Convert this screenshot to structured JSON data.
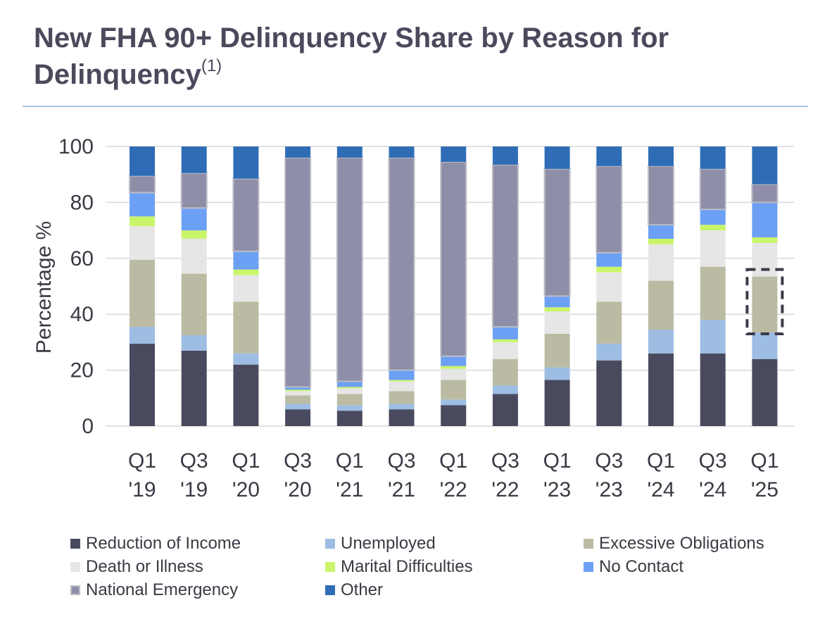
{
  "title": {
    "main": "New FHA 90+ Delinquency Share by Reason for Delinquency",
    "footnote": "(1)"
  },
  "colors": {
    "title": "#4a4a5c",
    "rule": "#a8c4e0",
    "grid": "#d9d9d9",
    "highlight_border": "#3b3b4a"
  },
  "legend": {
    "items": [
      "Reduction of Income",
      "Unemployed",
      "Excessive Obligations",
      "Death or Illness",
      "Marital Difficulties",
      "No Contact",
      "National Emergency",
      "Other"
    ]
  },
  "chart_data": {
    "type": "bar",
    "stacked": true,
    "title": "New FHA 90+ Delinquency Share by Reason for Delinquency",
    "xlabel": "",
    "ylabel": "Percentage %",
    "ylim": [
      0,
      100
    ],
    "yticks": [
      0,
      20,
      40,
      60,
      80,
      100
    ],
    "grid": true,
    "legend_position": "bottom",
    "categories": [
      "Q1 '19",
      "Q3 '19",
      "Q1 '20",
      "Q3 '20",
      "Q1 '21",
      "Q3 '21",
      "Q1 '22",
      "Q3 '22",
      "Q1 '23",
      "Q3 '23",
      "Q1 '24",
      "Q3 '24",
      "Q1 '25"
    ],
    "category_lines": [
      [
        "Q1",
        "'19"
      ],
      [
        "Q3",
        "'19"
      ],
      [
        "Q1",
        "'20"
      ],
      [
        "Q3",
        "'20"
      ],
      [
        "Q1",
        "'21"
      ],
      [
        "Q3",
        "'21"
      ],
      [
        "Q1",
        "'22"
      ],
      [
        "Q3",
        "'22"
      ],
      [
        "Q1",
        "'23"
      ],
      [
        "Q3",
        "'23"
      ],
      [
        "Q1",
        "'24"
      ],
      [
        "Q3",
        "'24"
      ],
      [
        "Q1",
        "'25"
      ]
    ],
    "series": [
      {
        "name": "Reduction of Income",
        "color": "#4a4a5f",
        "values": [
          29.5,
          27,
          22,
          6,
          5.5,
          6,
          7.5,
          11.5,
          16.5,
          23.5,
          26,
          26,
          24
        ]
      },
      {
        "name": "Unemployed",
        "color": "#9dbde3",
        "values": [
          6,
          5.5,
          4,
          2,
          2,
          2,
          2,
          3,
          4.5,
          6,
          8.5,
          12,
          9.5
        ]
      },
      {
        "name": "Excessive Obligations",
        "color": "#bbbba3",
        "values": [
          24,
          22,
          18.5,
          3,
          4,
          4.5,
          7,
          9.5,
          12,
          15,
          17.5,
          19,
          20
        ]
      },
      {
        "name": "Death or Illness",
        "color": "#e6e6e6",
        "values": [
          12,
          12.5,
          9.5,
          1.5,
          2,
          3.5,
          4,
          6,
          8,
          10.5,
          13,
          13,
          12
        ]
      },
      {
        "name": "Marital Difficulties",
        "color": "#caf56b",
        "values": [
          3.5,
          3,
          2,
          0.5,
          0.5,
          0.5,
          1,
          1,
          1.5,
          2,
          2,
          2,
          2
        ]
      },
      {
        "name": "No Contact",
        "color": "#6ca0f5",
        "values": [
          8.5,
          8,
          6.5,
          1,
          2,
          3.5,
          3.5,
          4.5,
          4,
          5,
          5,
          5.5,
          12.5
        ]
      },
      {
        "name": "National Emergency",
        "color": "#8f8ea8",
        "values": [
          6,
          12.5,
          26,
          82,
          80,
          76,
          69.5,
          58,
          45.5,
          31,
          21,
          14.5,
          6.5
        ]
      },
      {
        "name": "Other",
        "color": "#2e6db6",
        "values": [
          10.5,
          9.5,
          11.5,
          4,
          4,
          4,
          5.5,
          6.5,
          8,
          7,
          7,
          8,
          13.5
        ]
      }
    ],
    "annotations": [
      {
        "type": "dashed-box",
        "category": "Q1 '25",
        "y_range": [
          33,
          56
        ]
      }
    ]
  }
}
